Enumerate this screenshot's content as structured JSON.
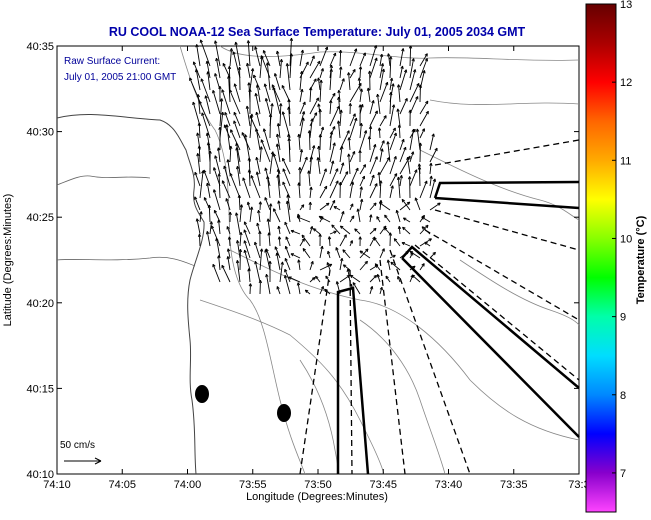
{
  "title": "RU COOL  NOAA-12  Sea Surface Temperature:  July 01, 2005 2034 GMT",
  "annotation": {
    "line1": "Raw Surface Current:",
    "line2": "July 01, 2005 21:00 GMT"
  },
  "scale_label": "50 cm/s",
  "xaxis": {
    "label": "Longitude (Degrees:Minutes)",
    "ticks": [
      "74:10",
      "74:05",
      "74:00",
      "73:55",
      "73:50",
      "73:45",
      "73:40",
      "73:35",
      "73:3"
    ]
  },
  "yaxis": {
    "label": "Latitude (Degrees:Minutes)",
    "ticks": [
      "40:35",
      "40:30",
      "40:25",
      "40:20",
      "40:15",
      "40:10"
    ]
  },
  "colorbar": {
    "label": "Temperature (°C)",
    "ticks": [
      "13",
      "12",
      "11",
      "10",
      "9",
      "8",
      "7"
    ],
    "min": 6.5,
    "max": 13,
    "stops": [
      "#ff44ff",
      "#8800cc",
      "#0000ff",
      "#0088ff",
      "#00ddff",
      "#00ffaa",
      "#00ff00",
      "#88ff00",
      "#ffff00",
      "#ffaa00",
      "#ff6600",
      "#ff0000",
      "#aa0000",
      "#660000"
    ]
  },
  "colors": {
    "title": "#0000aa",
    "annotation": "#000099"
  },
  "chart_data": {
    "type": "vector-map",
    "title": "RU COOL  NOAA-12  Sea Surface Temperature:  July 01, 2005 2034 GMT",
    "xlabel": "Longitude (Degrees:Minutes)",
    "ylabel": "Latitude (Degrees:Minutes)",
    "xlim_minutes_west": [
      74.1667,
      73.5
    ],
    "ylim_degrees_north": [
      40.1667,
      40.5833
    ],
    "colorbar_range_C": [
      6.5,
      13
    ],
    "current_scale_cm_s": 50,
    "vector_field": "Raw Surface Current: July 01, 2005 21:00 GMT"
  }
}
